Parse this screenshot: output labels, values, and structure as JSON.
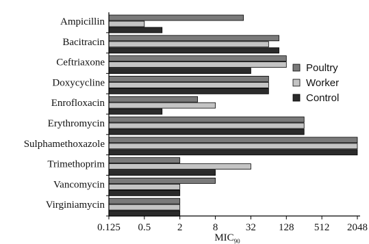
{
  "chart_data": {
    "type": "bar",
    "orientation": "horizontal",
    "x_scale": "log2",
    "xlabel": "MIC",
    "xlabel_subscript": "90",
    "xlim": [
      0.125,
      2048
    ],
    "x_ticks": [
      "0.125",
      "0.5",
      "2",
      "8",
      "32",
      "128",
      "512",
      "2048"
    ],
    "categories": [
      "Ampicillin",
      "Bacitracin",
      "Ceftriaxone",
      "Doxycycline",
      "Enrofloxacin",
      "Erythromycin",
      "Sulphamethoxazole",
      "Trimethoprim",
      "Vancomycin",
      "Virginiamycin"
    ],
    "series": [
      {
        "name": "Poultry",
        "color": "#7a7a7a",
        "values": [
          24,
          96,
          128,
          64,
          4,
          256,
          2048,
          2,
          8,
          2
        ]
      },
      {
        "name": "Worker",
        "color": "#c4c4c4",
        "values": [
          0.5,
          64,
          128,
          64,
          8,
          256,
          2048,
          32,
          2,
          2
        ]
      },
      {
        "name": "Control",
        "color": "#2b2b2b",
        "values": [
          1,
          96,
          32,
          64,
          1,
          256,
          2048,
          8,
          2,
          2
        ]
      }
    ],
    "legend_position": "right",
    "grid": false
  }
}
